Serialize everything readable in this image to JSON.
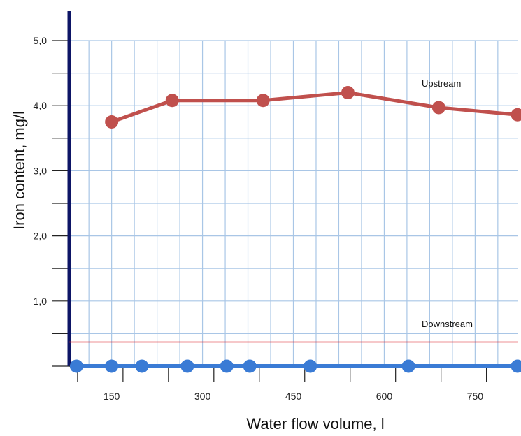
{
  "chart_data": {
    "type": "line",
    "xlabel": "Water flow volume, l",
    "ylabel": "Iron content, mg/l",
    "xlim": [
      80,
      820
    ],
    "ylim": [
      0,
      5.0
    ],
    "xticks": [
      150,
      300,
      450,
      600,
      750
    ],
    "xtick_labels": [
      "150",
      "300",
      "450",
      "600",
      "750"
    ],
    "yticks": [
      1.0,
      2.0,
      3.0,
      4.0,
      5.0
    ],
    "ytick_labels": [
      "1,0",
      "2,0",
      "3,0",
      "4,0",
      "5,0"
    ],
    "grid": true,
    "series": [
      {
        "name": "Upstream",
        "color": "#c0504d",
        "x": [
          150,
          250,
          400,
          540,
          690,
          820
        ],
        "y": [
          3.75,
          4.08,
          4.08,
          4.2,
          3.97,
          3.86
        ]
      },
      {
        "name": "Downstream",
        "color": "#3a7bd5",
        "x": [
          92,
          150,
          200,
          275,
          340,
          378,
          478,
          640,
          820
        ],
        "y": [
          0,
          0,
          0,
          0,
          0,
          0,
          0,
          0,
          0
        ]
      }
    ],
    "reference_line": {
      "y": 0.37,
      "color": "#d9252a"
    },
    "annotations": [
      "Upstream",
      "Downstream"
    ]
  }
}
